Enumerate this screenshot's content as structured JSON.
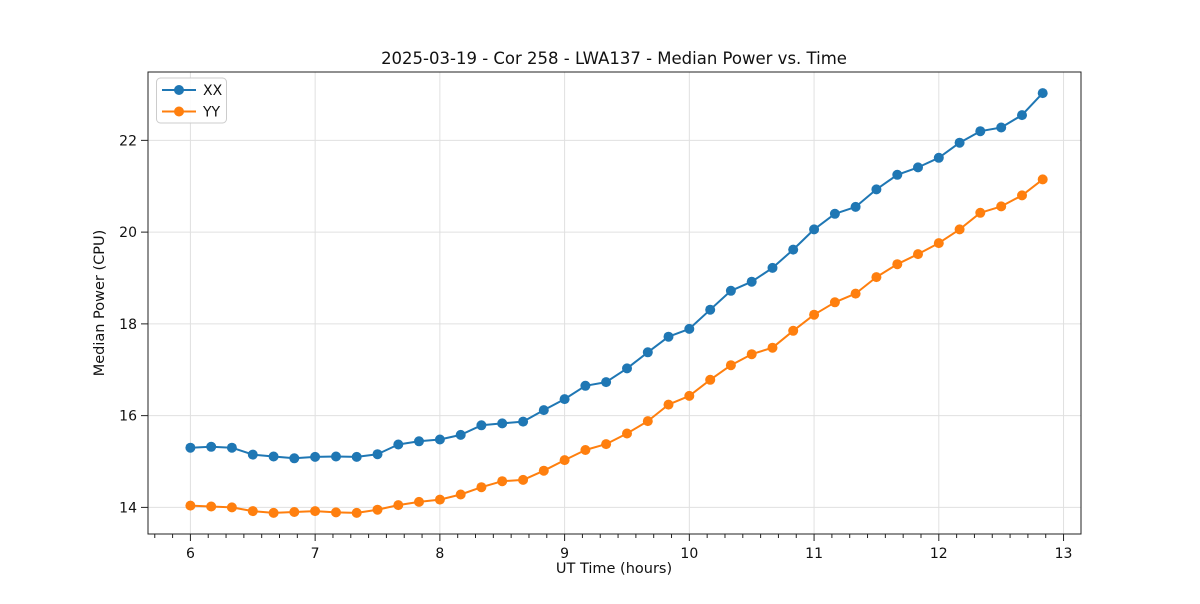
{
  "chart_data": {
    "type": "line",
    "title": "2025-03-19 - Cor 258 - LWA137 - Median Power vs. Time",
    "xlabel": "UT Time (hours)",
    "ylabel": "Median Power (CPU)",
    "xlim": [
      5.66,
      13.14
    ],
    "ylim": [
      13.42,
      23.49
    ],
    "xticks": [
      6,
      7,
      8,
      9,
      10,
      11,
      12,
      13
    ],
    "yticks": [
      14,
      16,
      18,
      20,
      22
    ],
    "x_minor_divisions": 7,
    "grid": true,
    "grid_color": "#e0e0e0",
    "spine_color": "#222222",
    "legend_position": "upper-left",
    "x": [
      6.0,
      6.167,
      6.333,
      6.5,
      6.667,
      6.833,
      7.0,
      7.167,
      7.333,
      7.5,
      7.667,
      7.833,
      8.0,
      8.167,
      8.333,
      8.5,
      8.667,
      8.833,
      9.0,
      9.167,
      9.333,
      9.5,
      9.667,
      9.833,
      10.0,
      10.167,
      10.333,
      10.5,
      10.667,
      10.833,
      11.0,
      11.167,
      11.333,
      11.5,
      11.667,
      11.833,
      12.0,
      12.167,
      12.333,
      12.5,
      12.667,
      12.833
    ],
    "series": [
      {
        "name": "XX",
        "color": "#1f77b4",
        "values": [
          15.3,
          15.32,
          15.3,
          15.15,
          15.11,
          15.07,
          15.1,
          15.11,
          15.1,
          15.16,
          15.37,
          15.44,
          15.48,
          15.58,
          15.79,
          15.83,
          15.87,
          16.12,
          16.36,
          16.65,
          16.73,
          17.03,
          17.38,
          17.72,
          17.89,
          18.31,
          18.72,
          18.92,
          19.22,
          19.62,
          20.06,
          20.4,
          20.55,
          20.93,
          21.25,
          21.41,
          21.62,
          21.95,
          22.2,
          22.28,
          22.55,
          23.03
        ]
      },
      {
        "name": "YY",
        "color": "#ff7f0e",
        "values": [
          14.04,
          14.02,
          14.0,
          13.92,
          13.88,
          13.9,
          13.92,
          13.89,
          13.88,
          13.95,
          14.05,
          14.12,
          14.17,
          14.28,
          14.44,
          14.57,
          14.6,
          14.8,
          15.03,
          15.25,
          15.38,
          15.61,
          15.88,
          16.24,
          16.43,
          16.78,
          17.1,
          17.34,
          17.48,
          17.85,
          18.2,
          18.47,
          18.66,
          19.02,
          19.3,
          19.52,
          19.76,
          20.06,
          20.42,
          20.56,
          20.8,
          21.15
        ]
      }
    ]
  }
}
